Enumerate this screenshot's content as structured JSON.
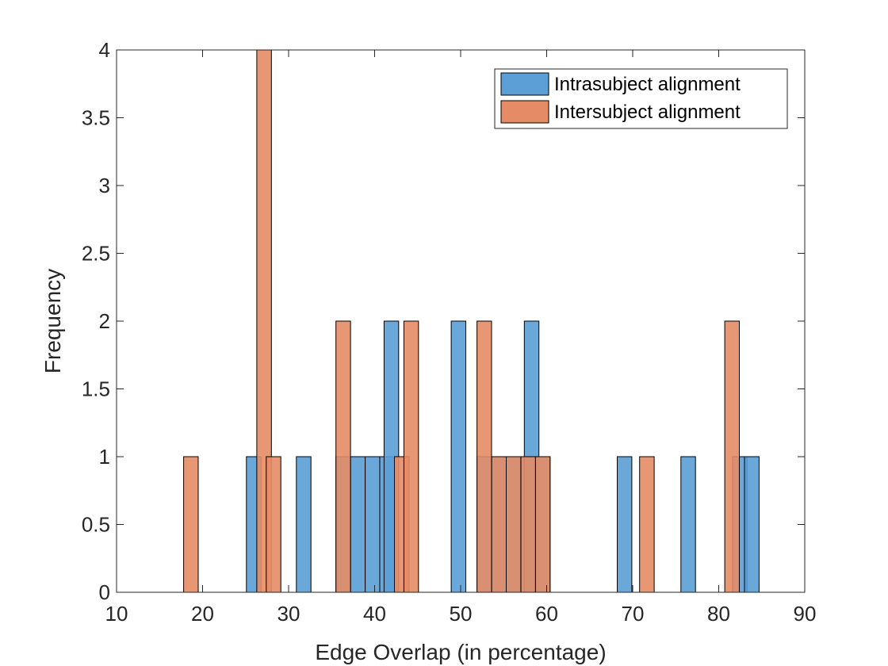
{
  "chart_data": {
    "type": "bar",
    "subtype": "overlapping-histogram",
    "xlabel": "Edge Overlap (in percentage)",
    "ylabel": "Frequency",
    "xlim": [
      10,
      90
    ],
    "ylim": [
      0,
      4
    ],
    "xticks": [
      10,
      20,
      30,
      40,
      50,
      60,
      70,
      80,
      90
    ],
    "yticks": [
      0,
      0.5,
      1,
      1.5,
      2,
      2.5,
      3,
      3.5,
      4
    ],
    "ytick_labels": [
      "0",
      "0.5",
      "1",
      "1.5",
      "2",
      "2.5",
      "3",
      "3.5",
      "4"
    ],
    "bin_width": 1.7,
    "legend_position": "top-right",
    "series": [
      {
        "name": "Intrasubject alignment",
        "color": "#5b9fd6",
        "bins": [
          {
            "x": [
              25.1,
              26.8
            ],
            "count": 1
          },
          {
            "x": [
              30.9,
              32.6
            ],
            "count": 1
          },
          {
            "x": [
              35.5,
              37.2
            ],
            "count": 1
          },
          {
            "x": [
              37.2,
              38.9
            ],
            "count": 1
          },
          {
            "x": [
              38.9,
              40.6
            ],
            "count": 1
          },
          {
            "x": [
              40.6,
              42.3
            ],
            "count": 1
          },
          {
            "x": [
              41.1,
              42.8
            ],
            "count": 2
          },
          {
            "x": [
              48.9,
              50.6
            ],
            "count": 2
          },
          {
            "x": [
              51.9,
              53.6
            ],
            "count": 1
          },
          {
            "x": [
              53.6,
              55.3
            ],
            "count": 1
          },
          {
            "x": [
              55.3,
              57.0
            ],
            "count": 1
          },
          {
            "x": [
              57.0,
              58.7
            ],
            "count": 1
          },
          {
            "x": [
              57.4,
              59.1
            ],
            "count": 2
          },
          {
            "x": [
              58.7,
              60.4
            ],
            "count": 1
          },
          {
            "x": [
              68.2,
              69.9
            ],
            "count": 1
          },
          {
            "x": [
              75.6,
              77.3
            ],
            "count": 1
          },
          {
            "x": [
              81.6,
              83.3
            ],
            "count": 1
          },
          {
            "x": [
              83.0,
              84.7
            ],
            "count": 1
          }
        ]
      },
      {
        "name": "Intersubject alignment",
        "color": "#e58c66",
        "bins": [
          {
            "x": [
              17.8,
              19.5
            ],
            "count": 1
          },
          {
            "x": [
              26.3,
              28.0
            ],
            "count": 4
          },
          {
            "x": [
              27.4,
              29.1
            ],
            "count": 1
          },
          {
            "x": [
              35.5,
              37.2
            ],
            "count": 2
          },
          {
            "x": [
              42.3,
              44.0
            ],
            "count": 1
          },
          {
            "x": [
              43.4,
              45.1
            ],
            "count": 2
          },
          {
            "x": [
              51.9,
              53.6
            ],
            "count": 2
          },
          {
            "x": [
              53.6,
              55.3
            ],
            "count": 1
          },
          {
            "x": [
              55.3,
              57.0
            ],
            "count": 1
          },
          {
            "x": [
              57.0,
              58.7
            ],
            "count": 1
          },
          {
            "x": [
              58.7,
              60.4
            ],
            "count": 1
          },
          {
            "x": [
              70.8,
              72.5
            ],
            "count": 1
          },
          {
            "x": [
              80.7,
              82.4
            ],
            "count": 2
          }
        ]
      }
    ]
  }
}
